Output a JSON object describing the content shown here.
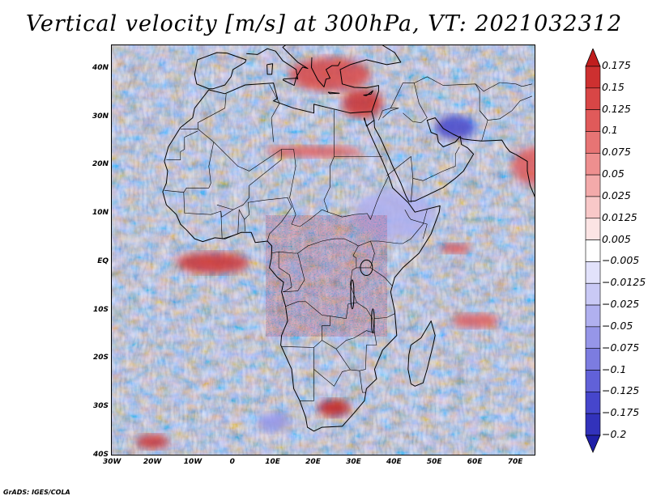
{
  "title": "Vertical velocity [m/s] at 300hPa, VT: 2021032312",
  "credit": "GrADS: IGES/COLA",
  "map": {
    "lon_range": [
      -30,
      75
    ],
    "lat_range": [
      -40,
      45
    ],
    "lon_ticks": [
      {
        "value": -30,
        "label": "30W"
      },
      {
        "value": -20,
        "label": "20W"
      },
      {
        "value": -10,
        "label": "10W"
      },
      {
        "value": 0,
        "label": "0"
      },
      {
        "value": 10,
        "label": "10E"
      },
      {
        "value": 20,
        "label": "20E"
      },
      {
        "value": 30,
        "label": "30E"
      },
      {
        "value": 40,
        "label": "40E"
      },
      {
        "value": 50,
        "label": "50E"
      },
      {
        "value": 60,
        "label": "60E"
      },
      {
        "value": 70,
        "label": "70E"
      }
    ],
    "lat_ticks": [
      {
        "value": 40,
        "label": "40N"
      },
      {
        "value": 30,
        "label": "30N"
      },
      {
        "value": 20,
        "label": "20N"
      },
      {
        "value": 10,
        "label": "10N"
      },
      {
        "value": 0,
        "label": "EQ"
      },
      {
        "value": -10,
        "label": "10S"
      },
      {
        "value": -20,
        "label": "20S"
      },
      {
        "value": -30,
        "label": "30S"
      },
      {
        "value": -40,
        "label": "40S"
      }
    ]
  },
  "colorbar": {
    "labels": [
      "0.175",
      "0.15",
      "0.125",
      "0.1",
      "0.075",
      "0.05",
      "0.025",
      "0.0125",
      "0.005",
      "−0.005",
      "−0.0125",
      "−0.025",
      "−0.05",
      "−0.075",
      "−0.1",
      "−0.125",
      "−0.175",
      "−0.2"
    ],
    "colors": [
      "#c01e1e",
      "#cd3030",
      "#d84646",
      "#e05a5a",
      "#e77474",
      "#ee8f8f",
      "#f3aaaa",
      "#f8c8c8",
      "#fce4e4",
      "#ffffff",
      "#e2e2fb",
      "#c9c9f5",
      "#b0b0ef",
      "#9696e8",
      "#7c7ce0",
      "#6161d8",
      "#4646cc",
      "#3232bb",
      "#2020a8"
    ]
  },
  "highlights": [
    {
      "lon": -5,
      "lat": 0,
      "rx": 9,
      "ry": 2.2,
      "value": 0.15
    },
    {
      "lon": 25,
      "lat": -30,
      "rx": 4,
      "ry": 1.8,
      "value": 0.175
    },
    {
      "lon": 24,
      "lat": 39,
      "rx": 10,
      "ry": 3.5,
      "value": 0.125
    },
    {
      "lon": 32,
      "lat": 33,
      "rx": 5,
      "ry": 3,
      "value": 0.15
    },
    {
      "lon": -20,
      "lat": -37,
      "rx": 4,
      "ry": 1.5,
      "value": 0.15
    },
    {
      "lon": 55,
      "lat": 3,
      "rx": 4,
      "ry": 1,
      "value": 0.125
    },
    {
      "lon": 60,
      "lat": -12,
      "rx": 6,
      "ry": 1.5,
      "value": 0.1
    },
    {
      "lon": 75,
      "lat": 20,
      "rx": 6,
      "ry": 4,
      "value": 0.1
    },
    {
      "lon": 55,
      "lat": 28,
      "rx": 5,
      "ry": 2.5,
      "value": -0.175
    },
    {
      "lon": 40,
      "lat": 10,
      "rx": 10,
      "ry": 5,
      "value": -0.05
    },
    {
      "lon": 10,
      "lat": -33,
      "rx": 4,
      "ry": 2,
      "value": -0.075
    },
    {
      "lon": 20,
      "lat": 23,
      "rx": 12,
      "ry": 1.2,
      "value": 0.1
    }
  ]
}
